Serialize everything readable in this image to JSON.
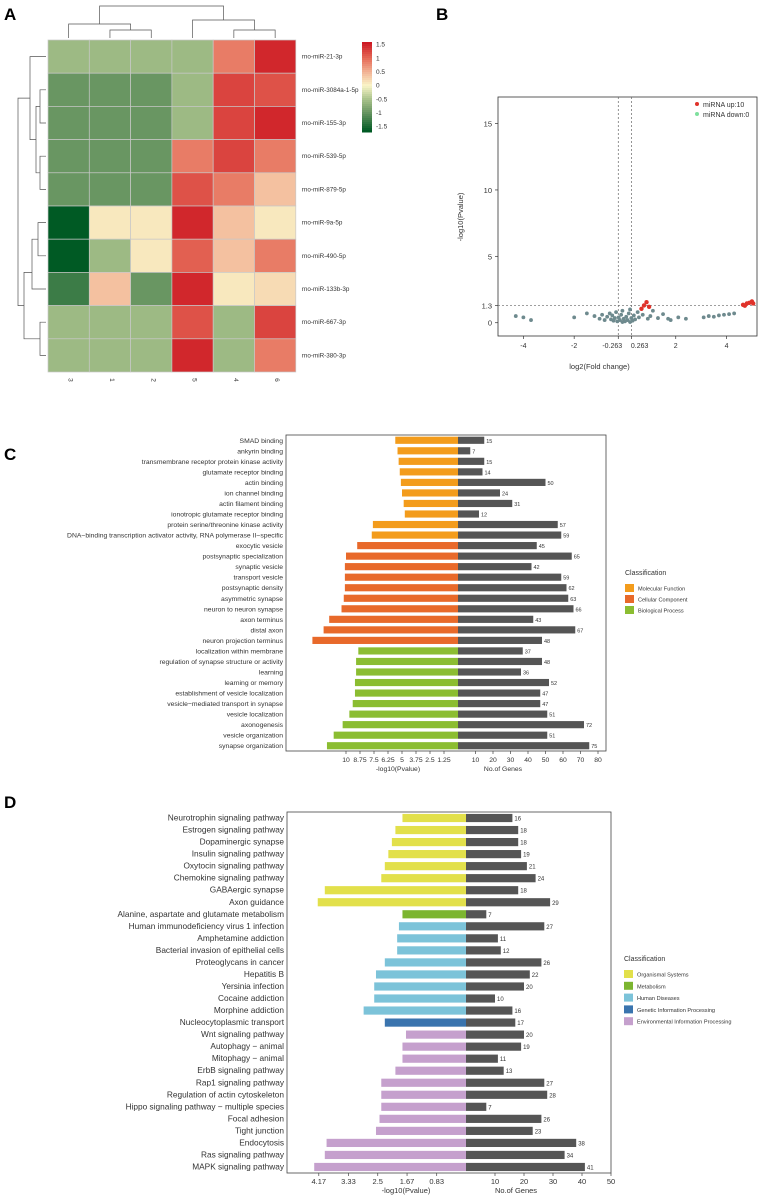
{
  "chart_data": [
    {
      "panel": "A",
      "type": "heatmap",
      "rows": [
        "rno-miR-21-3p",
        "rno-miR-3084a-1-5p",
        "rno-miR-155-3p",
        "rno-miR-539-5p",
        "rno-miR-879-5p",
        "rno-miR-9a-5p",
        "rno-miR-490-5p",
        "rno-miR-133b-3p",
        "rno-miR-667-3p",
        "rno-miR-380-3p"
      ],
      "columns": [
        "3",
        "1",
        "2",
        "5",
        "4",
        "6"
      ],
      "values": [
        [
          -0.6,
          -0.6,
          -0.6,
          -0.6,
          0.9,
          1.5
        ],
        [
          -1.0,
          -1.0,
          -1.0,
          -0.6,
          1.3,
          1.2
        ],
        [
          -1.0,
          -1.0,
          -1.0,
          -0.6,
          1.3,
          1.5
        ],
        [
          -1.0,
          -1.0,
          -1.0,
          0.9,
          1.3,
          0.9
        ],
        [
          -1.0,
          -1.0,
          -1.0,
          1.2,
          0.9,
          0.4
        ],
        [
          -1.7,
          0.1,
          0.1,
          1.5,
          0.4,
          0.1
        ],
        [
          -1.7,
          -0.6,
          0.1,
          1.1,
          0.4,
          0.9
        ],
        [
          -1.3,
          0.4,
          -1.0,
          1.5,
          0.1,
          0.2
        ],
        [
          -0.6,
          -0.6,
          -0.6,
          1.2,
          -0.6,
          1.3
        ],
        [
          -0.6,
          -0.6,
          -0.6,
          1.5,
          -0.6,
          0.9
        ]
      ],
      "legend_ticks": [
        "1.5",
        "1",
        "0.5",
        "0",
        "-0.5",
        "-1",
        "-1.5"
      ]
    },
    {
      "panel": "B",
      "type": "scatter",
      "xlabel": "log2(Fold change)",
      "ylabel": "-log10(Pvalue)",
      "xlim": [
        -5,
        5.2
      ],
      "ylim": [
        -1,
        17
      ],
      "xticks": [
        "-4",
        "-2",
        "-0.263",
        "0.263",
        "2",
        "4"
      ],
      "yticks": [
        "0",
        "1.3",
        "5",
        "10",
        "15"
      ],
      "legend": [
        "miRNA up:10",
        "miRNA down:0"
      ],
      "up_points": [
        [
          0.75,
          1.3
        ],
        [
          0.85,
          1.55
        ],
        [
          0.65,
          1.05
        ],
        [
          4.65,
          1.35
        ],
        [
          4.8,
          1.45
        ],
        [
          4.9,
          1.5
        ],
        [
          5.0,
          1.6
        ],
        [
          5.05,
          1.45
        ],
        [
          4.72,
          1.28
        ],
        [
          0.95,
          1.2
        ]
      ],
      "other_points": [
        [
          -4.3,
          0.5
        ],
        [
          -4.0,
          0.4
        ],
        [
          -3.7,
          0.2
        ],
        [
          -1.2,
          0.5
        ],
        [
          -1.0,
          0.3
        ],
        [
          -0.9,
          0.6
        ],
        [
          -0.8,
          0.2
        ],
        [
          -0.7,
          0.45
        ],
        [
          -0.6,
          0.7
        ],
        [
          -0.55,
          0.25
        ],
        [
          -0.5,
          0.55
        ],
        [
          -0.45,
          0.15
        ],
        [
          -0.4,
          0.35
        ],
        [
          -0.35,
          0.8
        ],
        [
          -0.3,
          0.1
        ],
        [
          -0.25,
          0.4
        ],
        [
          -0.2,
          0.2
        ],
        [
          -0.15,
          0.6
        ],
        [
          -0.1,
          0.05
        ],
        [
          -0.05,
          0.3
        ],
        [
          0.0,
          0.1
        ],
        [
          0.05,
          0.45
        ],
        [
          0.1,
          0.2
        ],
        [
          0.15,
          0.7
        ],
        [
          0.2,
          0.05
        ],
        [
          0.25,
          0.35
        ],
        [
          0.3,
          0.15
        ],
        [
          0.35,
          0.55
        ],
        [
          0.4,
          0.25
        ],
        [
          0.5,
          0.8
        ],
        [
          0.55,
          0.4
        ],
        [
          0.7,
          0.6
        ],
        [
          0.9,
          0.3
        ],
        [
          1.0,
          0.5
        ],
        [
          1.1,
          0.9
        ],
        [
          1.3,
          0.35
        ],
        [
          1.5,
          0.65
        ],
        [
          1.7,
          0.3
        ],
        [
          2.1,
          0.4
        ],
        [
          3.1,
          0.4
        ],
        [
          3.3,
          0.5
        ],
        [
          3.5,
          0.45
        ],
        [
          3.7,
          0.55
        ],
        [
          3.9,
          0.6
        ],
        [
          4.1,
          0.65
        ],
        [
          4.3,
          0.7
        ],
        [
          -2.0,
          0.4
        ],
        [
          -1.5,
          0.7
        ],
        [
          -0.1,
          0.9
        ],
        [
          0.2,
          1.0
        ],
        [
          1.8,
          0.2
        ],
        [
          2.4,
          0.3
        ]
      ]
    },
    {
      "panel": "C",
      "type": "bar",
      "categories": [
        "SMAD binding",
        "ankyrin binding",
        "transmembrane receptor protein kinase activity",
        "glutamate receptor binding",
        "actin binding",
        "ion channel binding",
        "actin filament binding",
        "ionotropic glutamate receptor binding",
        "protein serine/threonine kinase activity",
        "DNA−binding transcription activator activity, RNA polymerase II−specific",
        "exocytic vesicle",
        "postsynaptic specialization",
        "synaptic vesicle",
        "transport vesicle",
        "postsynaptic density",
        "asymmetric synapse",
        "neuron to neuron synapse",
        "axon terminus",
        "distal axon",
        "neuron projection terminus",
        "localization within membrane",
        "regulation of synapse structure or activity",
        "learning",
        "learning or memory",
        "establishment of vesicle localization",
        "vesicle−mediated transport in synapse",
        "vesicle localization",
        "axonogenesis",
        "vesicle organization",
        "synapse organization"
      ],
      "classes": [
        "MF",
        "MF",
        "MF",
        "MF",
        "MF",
        "MF",
        "MF",
        "MF",
        "MF",
        "MF",
        "CC",
        "CC",
        "CC",
        "CC",
        "CC",
        "CC",
        "CC",
        "CC",
        "CC",
        "CC",
        "BP",
        "BP",
        "BP",
        "BP",
        "BP",
        "BP",
        "BP",
        "BP",
        "BP",
        "BP"
      ],
      "series": [
        {
          "name": "-log10(Pvalue)",
          "values": [
            5.6,
            5.4,
            5.3,
            5.2,
            5.1,
            5.0,
            4.85,
            4.75,
            7.6,
            7.7,
            9.0,
            10.0,
            10.1,
            10.1,
            10.1,
            10.2,
            10.4,
            11.5,
            12.0,
            13.0,
            8.9,
            9.1,
            9.1,
            9.2,
            9.2,
            9.4,
            9.7,
            10.3,
            11.1,
            11.7
          ]
        },
        {
          "name": "No.of Genes",
          "values": [
            15,
            7,
            15,
            14,
            50,
            24,
            31,
            12,
            57,
            59,
            45,
            65,
            42,
            59,
            62,
            63,
            66,
            43,
            67,
            48,
            37,
            48,
            36,
            52,
            47,
            47,
            51,
            72,
            51,
            75
          ]
        }
      ],
      "left_ticks": [
        "10",
        "8.75",
        "7.5",
        "6.25",
        "5",
        "3.75",
        "2.5",
        "1.25"
      ],
      "right_ticks": [
        "10",
        "20",
        "30",
        "40",
        "50",
        "60",
        "70",
        "80"
      ],
      "xlabel_left": "-log10(Pvalue)",
      "xlabel_right": "No.of Genes",
      "legend_title": "Classification",
      "legend": [
        {
          "key": "MF",
          "label": "Molecular Function",
          "color": "#f39c1c"
        },
        {
          "key": "CC",
          "label": "Cellular Component",
          "color": "#e8692a"
        },
        {
          "key": "BP",
          "label": "Biological Process",
          "color": "#8bbd31"
        }
      ]
    },
    {
      "panel": "D",
      "type": "bar",
      "categories": [
        "Neurotrophin signaling pathway",
        "Estrogen signaling pathway",
        "Dopaminergic synapse",
        "Insulin signaling pathway",
        "Oxytocin signaling pathway",
        "Chemokine signaling pathway",
        "GABAergic synapse",
        "Axon guidance",
        "Alanine, aspartate and glutamate metabolism",
        "Human immunodeficiency virus 1 infection",
        "Amphetamine addiction",
        "Bacterial invasion of epithelial cells",
        "Proteoglycans in cancer",
        "Hepatitis B",
        "Yersinia infection",
        "Cocaine addiction",
        "Morphine addiction",
        "Nucleocytoplasmic transport",
        "Wnt signaling pathway",
        "Autophagy − animal",
        "Mitophagy − animal",
        "ErbB signaling pathway",
        "Rap1 signaling pathway",
        "Regulation of actin cytoskeleton",
        "Hippo signaling pathway − multiple species",
        "Focal adhesion",
        "Tight junction",
        "Endocytosis",
        "Ras signaling pathway",
        "MAPK signaling pathway"
      ],
      "classes": [
        "OS",
        "OS",
        "OS",
        "OS",
        "OS",
        "OS",
        "OS",
        "OS",
        "M",
        "HD",
        "HD",
        "HD",
        "HD",
        "HD",
        "HD",
        "HD",
        "HD",
        "GIP",
        "EIP",
        "EIP",
        "EIP",
        "EIP",
        "EIP",
        "EIP",
        "EIP",
        "EIP",
        "EIP",
        "EIP",
        "EIP",
        "EIP"
      ],
      "series": [
        {
          "name": "-log10(Pvalue)",
          "values": [
            1.8,
            2.0,
            2.1,
            2.2,
            2.3,
            2.4,
            4.0,
            4.2,
            1.8,
            1.9,
            1.95,
            1.95,
            2.3,
            2.55,
            2.6,
            2.6,
            2.9,
            2.3,
            1.7,
            1.8,
            1.8,
            2.0,
            2.4,
            2.4,
            2.4,
            2.45,
            2.55,
            3.95,
            4.0,
            4.3
          ]
        },
        {
          "name": "No.of Genes",
          "values": [
            16,
            18,
            18,
            19,
            21,
            24,
            18,
            29,
            7,
            27,
            11,
            12,
            26,
            22,
            20,
            10,
            16,
            17,
            20,
            19,
            11,
            13,
            27,
            28,
            7,
            26,
            23,
            38,
            34,
            41
          ]
        }
      ],
      "left_ticks": [
        "4.17",
        "3.33",
        "2.5",
        "1.67",
        "0.83"
      ],
      "right_ticks": [
        "10",
        "20",
        "30",
        "40",
        "50"
      ],
      "xlabel_left": "-log10(Pvalue)",
      "xlabel_right": "No.of Genes",
      "legend_title": "Classification",
      "legend": [
        {
          "key": "OS",
          "label": "Organismal Systems",
          "color": "#e2e04b"
        },
        {
          "key": "M",
          "label": "Metabolism",
          "color": "#7cb530"
        },
        {
          "key": "HD",
          "label": "Human Diseases",
          "color": "#7cc3d9"
        },
        {
          "key": "GIP",
          "label": "Genetic Information Processing",
          "color": "#3a74ae"
        },
        {
          "key": "EIP",
          "label": "Environmental Information Processing",
          "color": "#c5a0cd"
        }
      ]
    }
  ]
}
